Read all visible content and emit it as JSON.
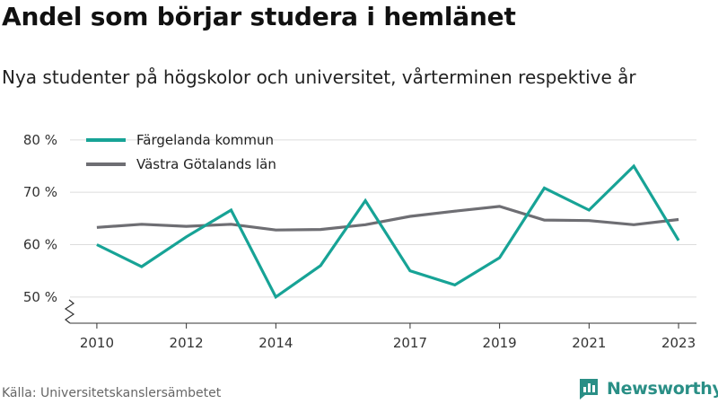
{
  "title": "Andel som börjar studera i hemlänet",
  "subtitle": "Nya studenter på högskolor och universitet, vårterminen respektive år",
  "source": "Källa: Universitetskanslersämbetet",
  "brand": {
    "name": "Newsworthy",
    "color": "#2a8f86",
    "logo_icon": "newsworthy-bar-chart-logo"
  },
  "chart_data": {
    "type": "line",
    "title": "",
    "xlabel": "",
    "ylabel": "",
    "x": [
      2010,
      2011,
      2012,
      2013,
      2014,
      2015,
      2016,
      2017,
      2018,
      2019,
      2020,
      2021,
      2022,
      2023
    ],
    "x_ticks": [
      2010,
      2012,
      2014,
      2017,
      2019,
      2021,
      2023
    ],
    "xlim": [
      2009.4,
      2023.4
    ],
    "y_ticks": [
      50,
      60,
      70,
      80
    ],
    "y_tick_labels": [
      "50 %",
      "60 %",
      "70 %",
      "80 %"
    ],
    "ylim": [
      45,
      81
    ],
    "y_axis_break": true,
    "grid": "horizontal",
    "legend_position": "top-left",
    "series": [
      {
        "name": "Färgelanda kommun",
        "color": "#17a396",
        "values": [
          60,
          55.8,
          61.5,
          66.6,
          50,
          56,
          68.4,
          55,
          52.3,
          57.5,
          70.8,
          66.6,
          75,
          60.8
        ]
      },
      {
        "name": "Västra Götalands län",
        "color": "#6e6e73",
        "values": [
          63.3,
          63.9,
          63.5,
          63.9,
          62.8,
          62.9,
          63.8,
          65.4,
          66.4,
          67.3,
          64.7,
          64.6,
          63.8,
          64.8
        ]
      }
    ]
  }
}
